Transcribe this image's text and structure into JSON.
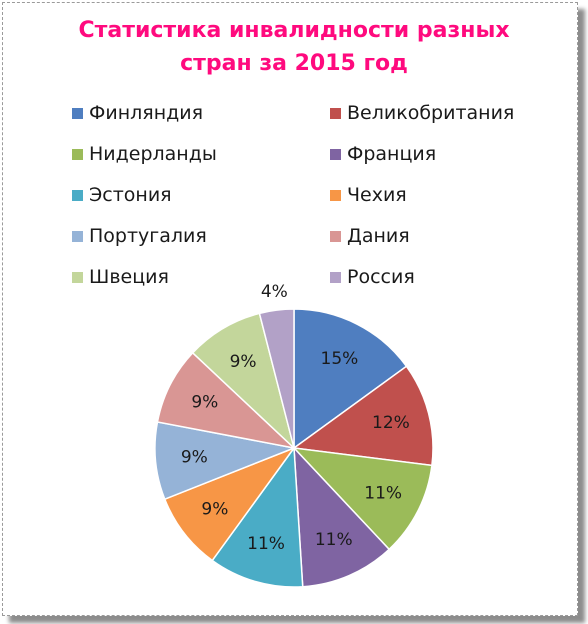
{
  "chart_data": {
    "type": "pie",
    "title_lines": [
      "Статистика инвалидности разных",
      "стран за 2015 год"
    ],
    "legend_position": "top",
    "slices": [
      {
        "name": "Финляндия",
        "value": 15,
        "label": "15%",
        "color": "#4f7ec0"
      },
      {
        "name": "Великобритания",
        "value": 12,
        "label": "12%",
        "color": "#c0504d"
      },
      {
        "name": "Нидерланды",
        "value": 11,
        "label": "11%",
        "color": "#9bbb59"
      },
      {
        "name": "Франция",
        "value": 11,
        "label": "11%",
        "color": "#7f64a2"
      },
      {
        "name": "Эстония",
        "value": 11,
        "label": "11%",
        "color": "#4aacc6"
      },
      {
        "name": "Чехия",
        "value": 9,
        "label": "9%",
        "color": "#f79646"
      },
      {
        "name": "Португалия",
        "value": 9,
        "label": "9%",
        "color": "#95b3d7"
      },
      {
        "name": "Дания",
        "value": 9,
        "label": "9%",
        "color": "#d99694"
      },
      {
        "name": "Швеция",
        "value": 9,
        "label": "9%",
        "color": "#c3d69b"
      },
      {
        "name": "Россия",
        "value": 4,
        "label": "4%",
        "color": "#b2a1c7"
      }
    ]
  }
}
